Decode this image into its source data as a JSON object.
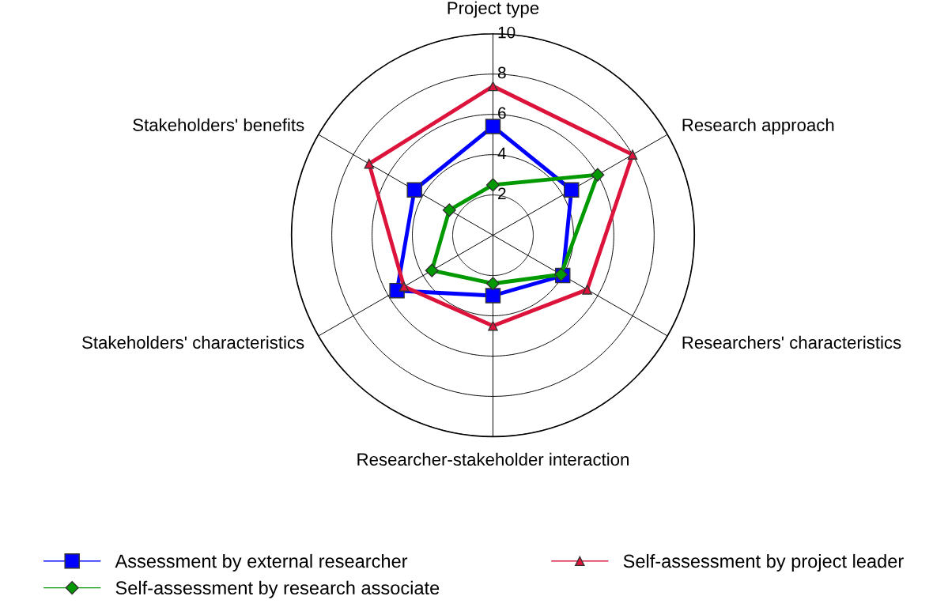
{
  "chart_data": {
    "type": "radar",
    "categories": [
      "Project type",
      "Research approach",
      "Researchers' characteristics",
      "Researcher-stakeholder interaction",
      "Stakeholders' characteristics",
      "Stakeholders' benefits"
    ],
    "ylim": [
      0,
      10
    ],
    "yticks": [
      2,
      4,
      6,
      8,
      10
    ],
    "grid": true,
    "legend": "bottom",
    "series": [
      {
        "name": "Assessment by external researcher",
        "color": "#0000ff",
        "marker": "square",
        "values": [
          5.4,
          4.5,
          4.0,
          3.0,
          5.5,
          4.5
        ]
      },
      {
        "name": "Self-assessment by research associate",
        "color": "#009900",
        "marker": "diamond",
        "values": [
          2.5,
          6.0,
          3.9,
          2.4,
          3.5,
          2.5
        ]
      },
      {
        "name": "Self-assessment by project leader",
        "color": "#dc143c",
        "marker": "triangle",
        "values": [
          7.4,
          8.0,
          5.4,
          4.5,
          5.1,
          7.1
        ]
      }
    ]
  }
}
